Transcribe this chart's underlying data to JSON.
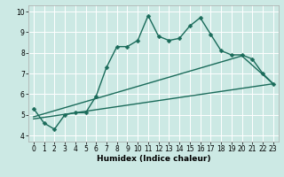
{
  "title": "",
  "xlabel": "Humidex (Indice chaleur)",
  "ylabel": "",
  "xlim": [
    -0.5,
    23.5
  ],
  "ylim": [
    3.7,
    10.3
  ],
  "yticks": [
    4,
    5,
    6,
    7,
    8,
    9,
    10
  ],
  "xticks": [
    0,
    1,
    2,
    3,
    4,
    5,
    6,
    7,
    8,
    9,
    10,
    11,
    12,
    13,
    14,
    15,
    16,
    17,
    18,
    19,
    20,
    21,
    22,
    23
  ],
  "bg_color": "#cce9e4",
  "grid_color": "#ffffff",
  "line_color": "#1a6b5a",
  "main_x": [
    0,
    1,
    2,
    3,
    4,
    5,
    6,
    7,
    8,
    9,
    10,
    11,
    12,
    13,
    14,
    15,
    16,
    17,
    18,
    19,
    20,
    21,
    22,
    23
  ],
  "main_y": [
    5.3,
    4.6,
    4.3,
    5.0,
    5.1,
    5.1,
    5.9,
    7.3,
    8.3,
    8.3,
    8.6,
    9.8,
    8.8,
    8.6,
    8.7,
    9.3,
    9.7,
    8.9,
    8.1,
    7.9,
    7.9,
    7.7,
    7.0,
    6.5
  ],
  "line2_x": [
    0,
    23
  ],
  "line2_y": [
    4.8,
    6.5
  ],
  "line3_x": [
    0,
    20,
    23
  ],
  "line3_y": [
    4.9,
    7.85,
    6.5
  ],
  "markersize": 2.5,
  "linewidth": 1.0,
  "tick_fontsize": 5.5,
  "xlabel_fontsize": 6.5
}
